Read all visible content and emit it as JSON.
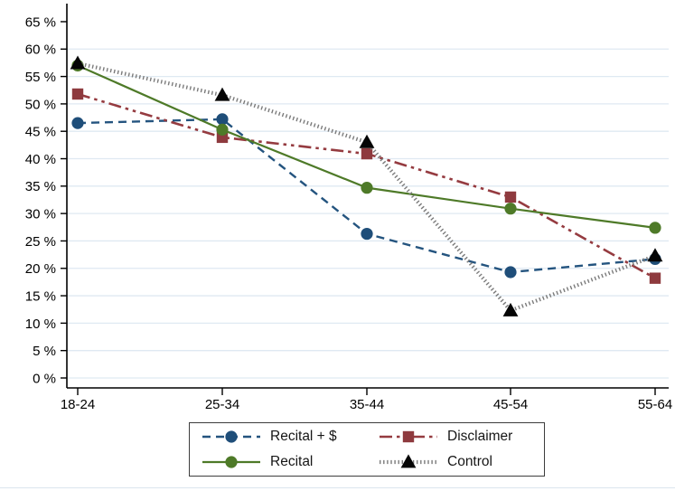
{
  "page": {
    "background": "#ffffff",
    "bottom_divider_color": "#dce5ee"
  },
  "chart_data": {
    "type": "line",
    "title": "",
    "xlabel": "",
    "ylabel": "",
    "categories": [
      "18-24",
      "25-34",
      "35-44",
      "45-54",
      "55-64"
    ],
    "series": [
      {
        "name": "Recital + $",
        "values": [
          46.5,
          47.2,
          26.3,
          19.3,
          21.7
        ],
        "color": "#24547f",
        "marker": "circle",
        "marker_color": "#1f4e79",
        "line_style": "dashed"
      },
      {
        "name": "Disclaimer",
        "values": [
          51.8,
          43.9,
          40.9,
          33.0,
          18.2
        ],
        "color": "#953b40",
        "marker": "square",
        "marker_color": "#8e3a3e",
        "line_style": "dash-dot-dot"
      },
      {
        "name": "Recital",
        "values": [
          57.0,
          45.3,
          34.7,
          30.9,
          27.4
        ],
        "color": "#4e7a28",
        "marker": "circle",
        "marker_color": "#4e7a28",
        "line_style": "solid"
      },
      {
        "name": "Control",
        "values": [
          57.4,
          51.6,
          43.0,
          12.3,
          22.3
        ],
        "color": "#7b7b7b",
        "marker": "triangle",
        "marker_color": "#050505",
        "line_style": "dotted"
      }
    ],
    "y_ticks": [
      0,
      5,
      10,
      15,
      20,
      25,
      30,
      35,
      40,
      45,
      50,
      55,
      60,
      65
    ],
    "y_tick_suffix": " %",
    "ylim": [
      0,
      65
    ],
    "grid": true,
    "gridline_color": "#dfe9f2",
    "axis_color": "#000000",
    "legend_position": "bottom"
  }
}
